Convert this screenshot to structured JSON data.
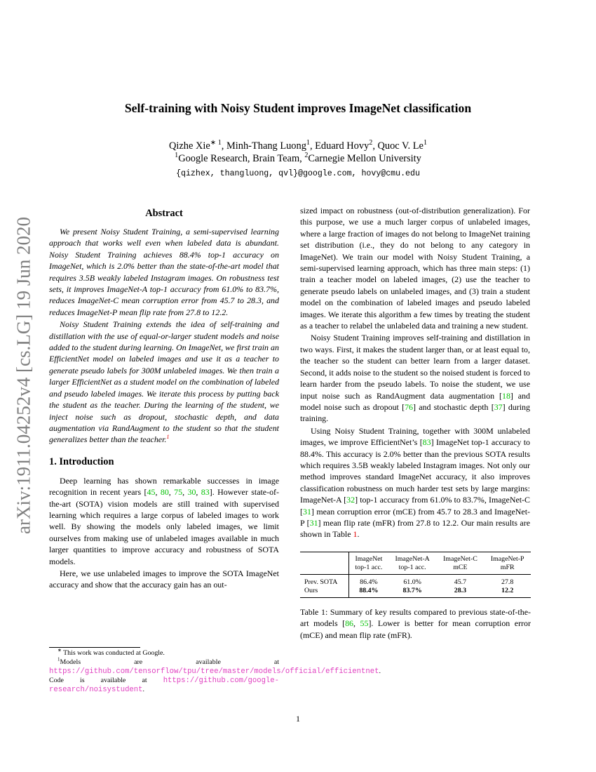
{
  "title": "Self-training with Noisy Student improves ImageNet classification",
  "authors_line": [
    {
      "t": "Qizhe Xie"
    },
    {
      "t": "∗ 1",
      "sup": true
    },
    {
      "t": ", Minh-Thang Luong"
    },
    {
      "t": "1",
      "sup": true
    },
    {
      "t": ", Eduard Hovy"
    },
    {
      "t": "2",
      "sup": true
    },
    {
      "t": ", Quoc V. Le"
    },
    {
      "t": "1",
      "sup": true
    }
  ],
  "affil_line": [
    {
      "t": "1",
      "sup": true
    },
    {
      "t": "Google Research, Brain Team, "
    },
    {
      "t": "2",
      "sup": true
    },
    {
      "t": "Carnegie Mellon University"
    }
  ],
  "emails": "{qizhex, thangluong, qvl}@google.com, hovy@cmu.edu",
  "arxiv_stamp": "arXiv:1911.04252v4  [cs.LG]  19 Jun 2020",
  "abstract_heading": "Abstract",
  "abstract": [
    [
      {
        "t": "We present Noisy Student Training, a semi-supervised learning approach that works well even when labeled data is abundant. Noisy Student Training achieves 88.4% top-1 accuracy on ImageNet, which is 2.0% better than the state-of-the-art model that requires 3.5B weakly labeled Instagram images. On robustness test sets, it improves ImageNet-A top-1 accuracy from 61.0% to 83.7%, reduces ImageNet-C mean corruption error from 45.7 to 28.3, and reduces ImageNet-P mean flip rate from 27.8 to 12.2."
      }
    ],
    [
      {
        "t": "Noisy Student Training extends the idea of self-training and distillation with the use of equal-or-larger student models and noise added to the student during learning. On ImageNet, we first train an EfficientNet model on labeled images and use it as a teacher to generate pseudo labels for 300M unlabeled images. We then train a larger EfficientNet as a student model on the combination of labeled and pseudo labeled images. We iterate this process by putting back the student as the teacher. During the learning of the student, we inject noise such as dropout, stochastic depth, and data augmentation via RandAugment to the student so that the student generalizes better than the teacher."
      },
      {
        "t": "1",
        "k": "fn"
      }
    ]
  ],
  "intro_heading": "1. Introduction",
  "intro": [
    [
      {
        "t": "Deep learning has shown remarkable successes in image recognition in recent years ["
      },
      {
        "t": "45",
        "k": "c"
      },
      {
        "t": ", "
      },
      {
        "t": "80",
        "k": "c"
      },
      {
        "t": ", "
      },
      {
        "t": "75",
        "k": "c"
      },
      {
        "t": ", "
      },
      {
        "t": "30",
        "k": "c"
      },
      {
        "t": ", "
      },
      {
        "t": "83",
        "k": "c"
      },
      {
        "t": "]. However state-of-the-art (SOTA) vision models are still trained with supervised learning which requires a large corpus of labeled images to work well. By showing the models only labeled images, we limit ourselves from making use of unlabeled images available in much larger quantities to improve accuracy and robustness of SOTA models."
      }
    ],
    [
      {
        "t": "Here, we use unlabeled images to improve the SOTA ImageNet accuracy and show that the accuracy gain has an out-"
      }
    ]
  ],
  "right_column": [
    [
      {
        "t": "sized impact on robustness (out-of-distribution generalization). For this purpose, we use a much larger corpus of unlabeled images, where a large fraction of images do not belong to ImageNet training set distribution (i.e., they do not belong to any category in ImageNet). We train our model with Noisy Student Training, a semi-supervised learning approach, which has three main steps: (1) train a teacher model on labeled images, (2) use the teacher to generate pseudo labels on unlabeled images, and (3) train a student model on the combination of labeled images and pseudo labeled images. We iterate this algorithm a few times by treating the student as a teacher to relabel the unlabeled data and training a new student."
      }
    ],
    [
      {
        "t": "Noisy Student Training improves self-training and distillation in two ways. First, it makes the student larger than, or at least equal to, the teacher so the student can better learn from a larger dataset. Second, it adds noise to the student so the noised student is forced to learn harder from the pseudo labels. To noise the student, we use input noise such as RandAugment data augmentation ["
      },
      {
        "t": "18",
        "k": "c"
      },
      {
        "t": "] and model noise such as dropout ["
      },
      {
        "t": "76",
        "k": "c"
      },
      {
        "t": "] and stochastic depth ["
      },
      {
        "t": "37",
        "k": "c"
      },
      {
        "t": "] during training."
      }
    ],
    [
      {
        "t": "Using Noisy Student Training, together with 300M unlabeled images, we improve EfficientNet’s ["
      },
      {
        "t": "83",
        "k": "c"
      },
      {
        "t": "] ImageNet top-1 accuracy to 88.4%. This accuracy is 2.0% better than the previous SOTA results which requires 3.5B weakly labeled Instagram images. Not only our method improves standard ImageNet accuracy, it also improves classification robustness on much harder test sets by large margins: ImageNet-A ["
      },
      {
        "t": "32",
        "k": "c"
      },
      {
        "t": "] top-1 accuracy from 61.0% to 83.7%, ImageNet-C ["
      },
      {
        "t": "31",
        "k": "c"
      },
      {
        "t": "] mean corruption error (mCE) from 45.7 to 28.3 and ImageNet-P ["
      },
      {
        "t": "31",
        "k": "c"
      },
      {
        "t": "] mean flip rate (mFR) from 27.8 to 12.2. Our main results are shown in Table "
      },
      {
        "t": "1",
        "k": "r"
      },
      {
        "t": "."
      }
    ]
  ],
  "table": {
    "headers": [
      [
        "",
        ""
      ],
      [
        "ImageNet",
        "top-1 acc."
      ],
      [
        "ImageNet-A",
        "top-1 acc."
      ],
      [
        "ImageNet-C",
        "mCE"
      ],
      [
        "ImageNet-P",
        "mFR"
      ]
    ],
    "rows": [
      {
        "label": "Prev. SOTA",
        "values": [
          "86.4%",
          "61.0%",
          "45.7",
          "27.8"
        ],
        "bold": false
      },
      {
        "label": "Ours",
        "values": [
          "88.4%",
          "83.7%",
          "28.3",
          "12.2"
        ],
        "bold": true
      }
    ]
  },
  "caption": [
    {
      "t": "Table 1: Summary of key results compared to previous state-of-the-art models ["
    },
    {
      "t": "86",
      "k": "c"
    },
    {
      "t": ", "
    },
    {
      "t": "55",
      "k": "c"
    },
    {
      "t": "]. Lower is better for mean corruption error (mCE) and mean flip rate (mFR)."
    }
  ],
  "footnotes": [
    [
      {
        "t": "∗",
        "sup": true
      },
      {
        "t": " This work was conducted at Google."
      }
    ],
    [
      {
        "t": "1",
        "sup": true
      },
      {
        "t": "Models are available at "
      },
      {
        "t": "https://github.com/tensorflow/tpu/tree/master/models/official/efficientnet",
        "k": "u"
      },
      {
        "t": ". Code is available at "
      },
      {
        "t": "https://github.com/google-research/noisystudent",
        "k": "u"
      },
      {
        "t": "."
      }
    ]
  ],
  "page_number": "1",
  "colors": {
    "citation": "#00c000",
    "reference": "#e00000",
    "url": "#e040c0",
    "arxiv_stamp": "#808080"
  }
}
